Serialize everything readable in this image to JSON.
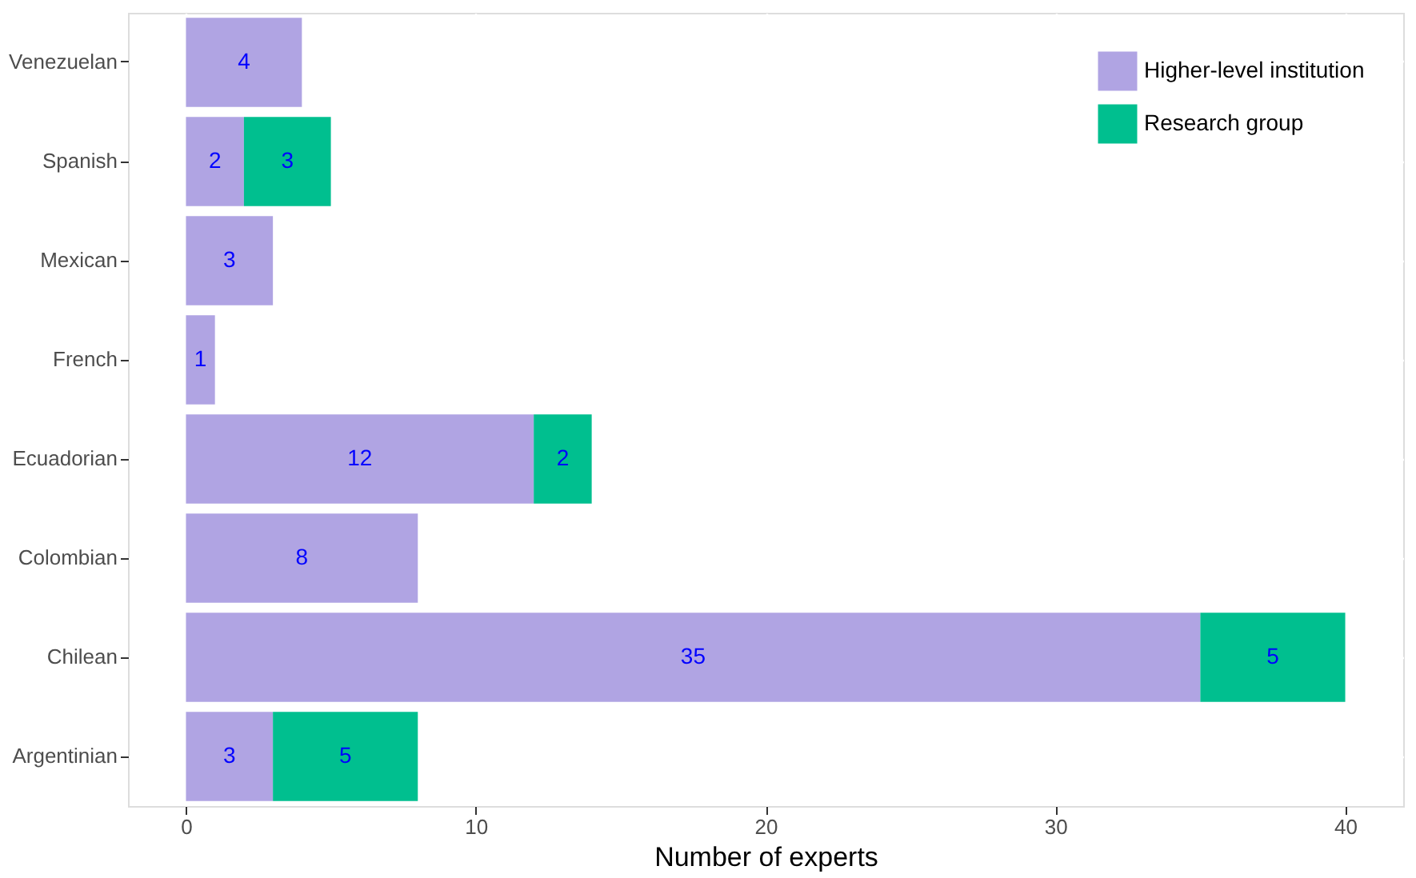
{
  "chart_data": {
    "type": "bar",
    "orientation": "horizontal",
    "stacked": true,
    "categories": [
      "Venezuelan",
      "Spanish",
      "Mexican",
      "French",
      "Ecuadorian",
      "Colombian",
      "Chilean",
      "Argentinian"
    ],
    "series": [
      {
        "name": "Higher-level institution",
        "color": "#b0a4e3",
        "values": [
          4,
          2,
          3,
          1,
          12,
          8,
          35,
          3
        ]
      },
      {
        "name": "Research group",
        "color": "#00bf8f",
        "values": [
          null,
          3,
          null,
          null,
          2,
          null,
          5,
          5
        ]
      }
    ],
    "xlabel": "Number of experts",
    "xlim": [
      -2,
      42
    ],
    "xticks": [
      0,
      10,
      20,
      30,
      40
    ],
    "data_labels": true,
    "grid": true,
    "legend": "top right"
  }
}
